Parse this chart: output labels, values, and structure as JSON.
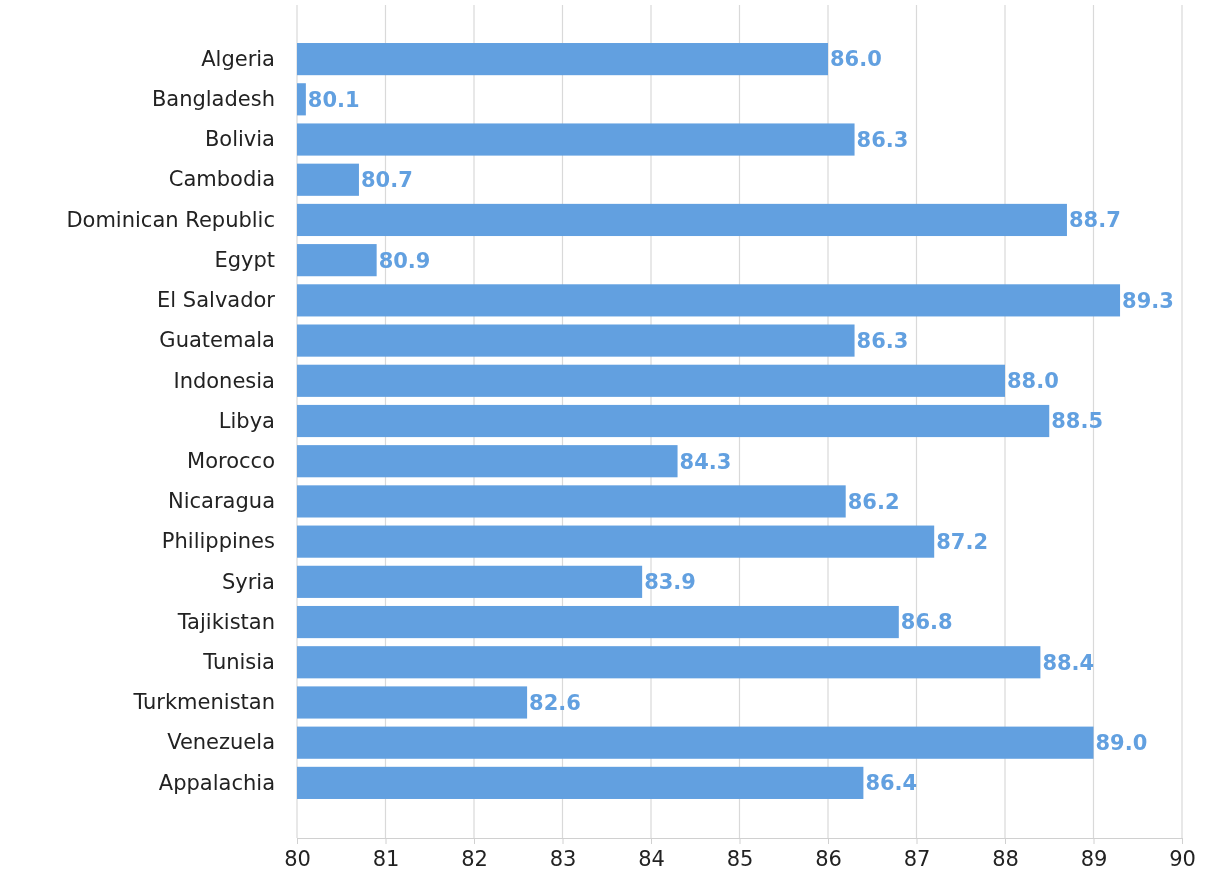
{
  "chart_data": {
    "type": "bar",
    "orientation": "horizontal",
    "categories": [
      "Algeria",
      "Bangladesh",
      "Bolivia",
      "Cambodia",
      "Dominican Republic",
      "Egypt",
      "El Salvador",
      "Guatemala",
      "Indonesia",
      "Libya",
      "Morocco",
      "Nicaragua",
      "Philippines",
      "Syria",
      "Tajikistan",
      "Tunisia",
      "Turkmenistan",
      "Venezuela",
      "Appalachia"
    ],
    "values": [
      86.0,
      80.1,
      86.3,
      80.7,
      88.7,
      80.9,
      89.3,
      86.3,
      88.0,
      88.5,
      84.3,
      86.2,
      87.2,
      83.9,
      86.8,
      88.4,
      82.6,
      89.0,
      86.4
    ],
    "color": "#62a0e0",
    "xlim": [
      80,
      90
    ],
    "xticks": [
      80,
      81,
      82,
      83,
      84,
      85,
      86,
      87,
      88,
      89,
      90
    ],
    "value_labels": [
      "86.0",
      "80.1",
      "86.3",
      "80.7",
      "88.7",
      "80.9",
      "89.3",
      "86.3",
      "88.0",
      "88.5",
      "84.3",
      "86.2",
      "87.2",
      "83.9",
      "86.8",
      "88.4",
      "82.6",
      "89.0",
      "86.4"
    ],
    "grid": "x"
  }
}
